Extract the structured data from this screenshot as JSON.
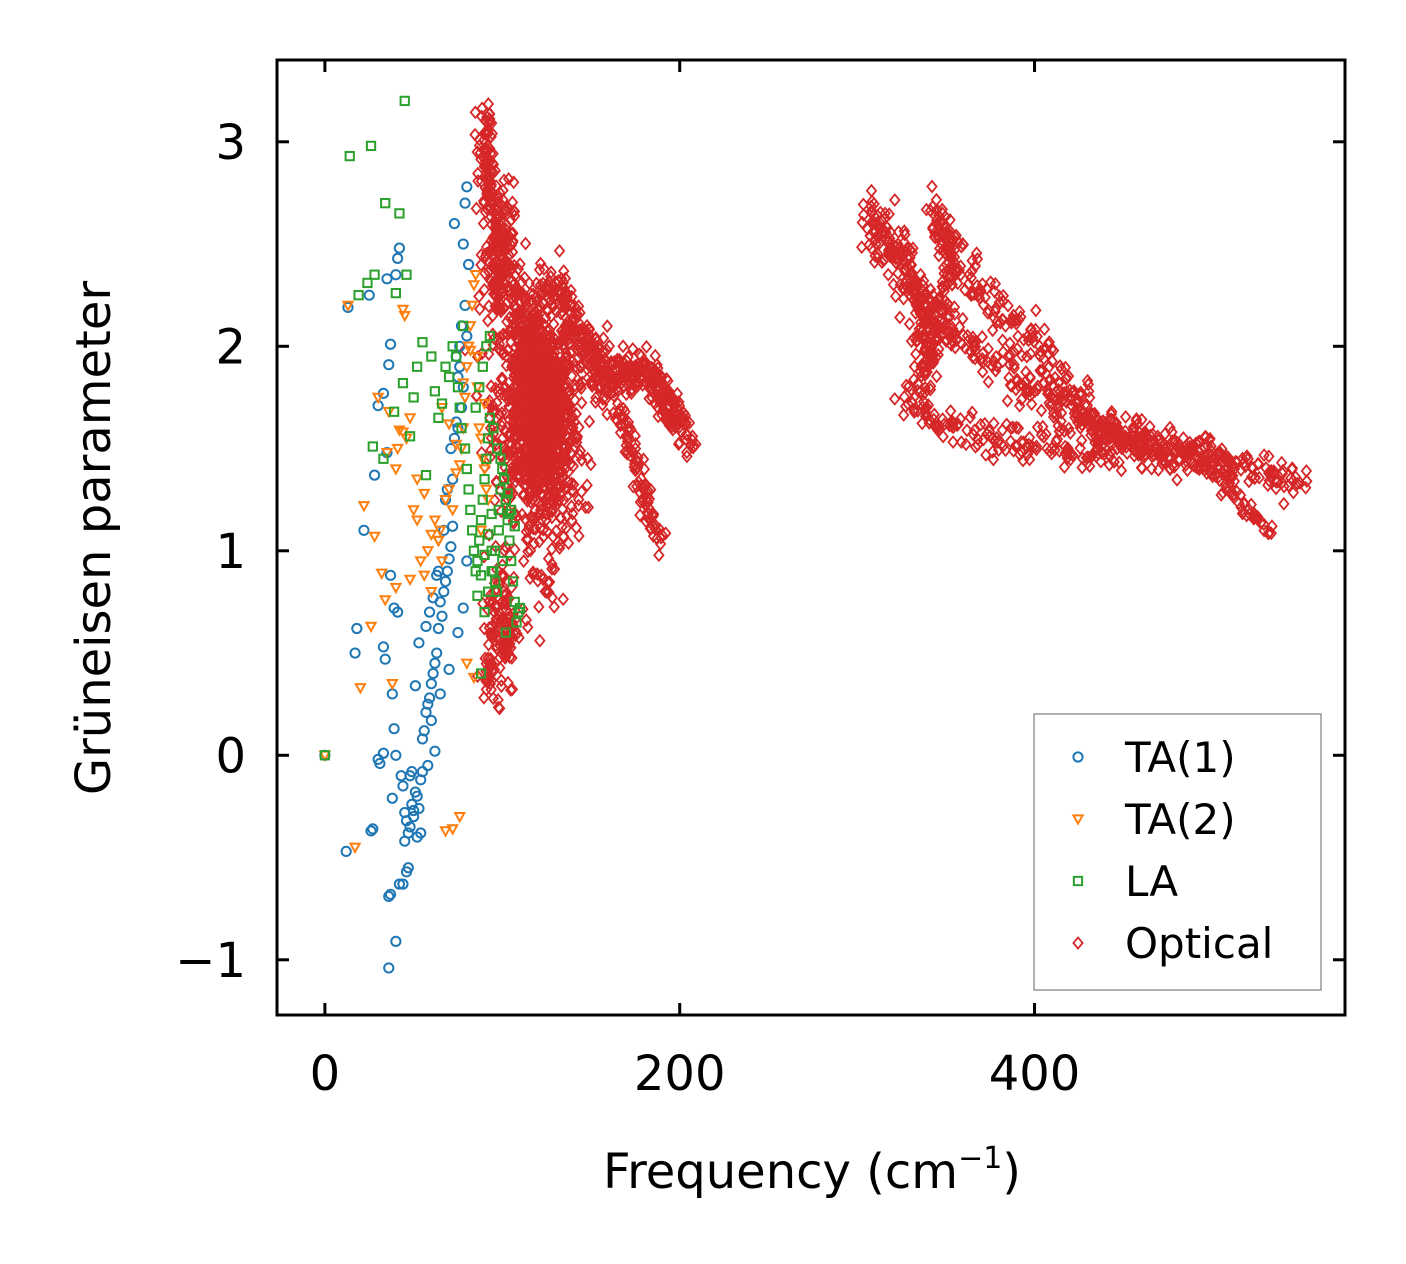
{
  "chart_data": {
    "type": "scatter",
    "xlabel": "Frequency (cm",
    "xlabel_sup": "−1",
    "xlabel_suffix": ")",
    "ylabel": "Grüneisen parameter",
    "xlim": [
      -27,
      575
    ],
    "ylim": [
      -1.27,
      3.4
    ],
    "xticks": [
      0,
      200,
      400
    ],
    "xtick_labels": [
      "0",
      "200",
      "400"
    ],
    "yticks": [
      -1,
      0,
      1,
      2,
      3
    ],
    "ytick_labels": [
      "−1",
      "0",
      "1",
      "2",
      "3"
    ],
    "legend_position": "bottom-right",
    "series": [
      {
        "name": "TA(1)",
        "label": "TA(1)",
        "marker": "circle",
        "color": "#1f77b4",
        "x": [
          0,
          12,
          13,
          17,
          18,
          22,
          25,
          26,
          27,
          28,
          30,
          30,
          31,
          33,
          33,
          34,
          35,
          36,
          36,
          37,
          37,
          38,
          38,
          39,
          40,
          40,
          41,
          42,
          42,
          44,
          45,
          46,
          47,
          48,
          49,
          50,
          51,
          52,
          53,
          54,
          55,
          56,
          57,
          58,
          59,
          60,
          61,
          62,
          63,
          64,
          65,
          66,
          67,
          68,
          69,
          70,
          71,
          72,
          73,
          74,
          75,
          76,
          77,
          78,
          79,
          80,
          44,
          48,
          52,
          46,
          50,
          54,
          58,
          62,
          40,
          36,
          55,
          60,
          65,
          70,
          75,
          78,
          80,
          72,
          68,
          64,
          75,
          77,
          79,
          76,
          74,
          78,
          80,
          81,
          73,
          71,
          69,
          67,
          63,
          61,
          59,
          57,
          53,
          51,
          49,
          47,
          45,
          43,
          41,
          39,
          37,
          35,
          33
        ],
        "y": [
          0,
          -0.47,
          2.19,
          0.5,
          0.62,
          1.1,
          2.25,
          -0.37,
          -0.36,
          1.37,
          1.71,
          -0.02,
          -0.04,
          0.01,
          0.53,
          0.47,
          2.33,
          -0.69,
          1.91,
          2.01,
          -0.68,
          -0.21,
          0.3,
          0.13,
          -0.91,
          2.35,
          2.43,
          2.48,
          -0.63,
          -0.63,
          -0.28,
          -0.57,
          -0.55,
          -0.35,
          -0.24,
          -0.3,
          -0.18,
          -0.4,
          -0.26,
          -0.38,
          -0.08,
          0.12,
          0.21,
          0.25,
          0.28,
          0.35,
          0.4,
          0.45,
          0.5,
          0.62,
          0.75,
          0.68,
          0.8,
          0.85,
          0.9,
          0.96,
          1.02,
          1.35,
          1.55,
          1.63,
          1.85,
          1.9,
          2.1,
          2.5,
          2.7,
          2.78,
          -0.15,
          -0.1,
          -0.2,
          -0.32,
          -0.27,
          -0.12,
          -0.05,
          0.02,
          0.0,
          -1.04,
          0.08,
          0.17,
          0.3,
          0.42,
          0.6,
          0.72,
          0.95,
          1.12,
          1.25,
          0.9,
          1.6,
          1.7,
          2.2,
          2.0,
          1.95,
          1.8,
          2.05,
          2.4,
          2.6,
          1.5,
          1.3,
          1.1,
          0.88,
          0.77,
          0.7,
          0.63,
          0.55,
          0.34,
          -0.08,
          -0.38,
          -0.42,
          -0.1,
          0.7,
          0.72,
          0.88,
          1.48,
          1.77
        ]
      },
      {
        "name": "TA(2)",
        "label": "TA(2)",
        "marker": "triangle-down",
        "color": "#ff7f0e",
        "x": [
          0,
          13,
          17,
          20,
          22,
          26,
          28,
          30,
          32,
          34,
          35,
          36,
          38,
          40,
          41,
          42,
          44,
          45,
          46,
          48,
          50,
          52,
          54,
          56,
          58,
          60,
          62,
          64,
          65,
          66,
          68,
          70,
          72,
          74,
          76,
          77,
          78,
          79,
          80,
          81,
          82,
          83,
          84,
          85,
          86,
          87,
          88,
          89,
          90,
          91,
          92,
          48,
          52,
          56,
          60,
          64,
          68,
          72,
          76,
          80,
          84,
          88,
          66,
          70,
          74,
          78,
          82,
          86,
          90,
          44,
          40
        ],
        "y": [
          0,
          2.2,
          -0.45,
          0.33,
          1.22,
          0.63,
          1.07,
          1.75,
          0.89,
          0.76,
          1.48,
          1.68,
          0.35,
          1.4,
          1.5,
          1.59,
          2.18,
          2.15,
          1.55,
          0.86,
          1.2,
          1.35,
          0.95,
          1.28,
          1.0,
          1.08,
          1.15,
          1.05,
          1.1,
          0.95,
          1.25,
          1.3,
          1.2,
          1.38,
          1.42,
          1.5,
          1.6,
          1.75,
          1.9,
          2.0,
          2.1,
          2.2,
          2.3,
          2.35,
          1.8,
          1.6,
          1.55,
          1.45,
          1.4,
          1.3,
          1.25,
          1.65,
          1.15,
          0.88,
          0.8,
          1.05,
          -0.37,
          -0.36,
          -0.3,
          0.45,
          0.38,
          1.1,
          1.7,
          1.62,
          1.52,
          1.82,
          1.98,
          1.95,
          1.72,
          1.58,
          0.82
        ]
      },
      {
        "name": "LA",
        "label": "LA",
        "marker": "square",
        "color": "#2ca02c",
        "x": [
          0,
          14,
          19,
          24,
          26,
          27,
          28,
          33,
          34,
          39,
          40,
          42,
          44,
          45,
          46,
          48,
          50,
          52,
          55,
          57,
          60,
          62,
          64,
          66,
          68,
          70,
          72,
          74,
          75,
          76,
          77,
          78,
          79,
          80,
          81,
          82,
          83,
          84,
          85,
          86,
          87,
          88,
          89,
          90,
          91,
          92,
          93,
          94,
          95,
          96,
          97,
          98,
          99,
          100,
          101,
          102,
          103,
          104,
          105,
          106,
          107,
          108,
          109,
          110,
          88,
          90,
          92,
          94,
          96,
          98,
          100,
          102,
          104,
          85,
          87,
          89,
          91,
          93,
          95,
          97,
          99,
          101,
          103,
          105,
          107,
          86,
          88,
          90,
          92,
          94
        ],
        "y": [
          0,
          2.93,
          2.25,
          2.31,
          2.98,
          1.51,
          2.35,
          1.45,
          2.7,
          1.68,
          2.26,
          2.65,
          1.82,
          3.2,
          2.35,
          1.56,
          1.75,
          1.9,
          2.02,
          1.37,
          1.95,
          1.78,
          1.65,
          1.72,
          1.9,
          1.85,
          2.0,
          1.95,
          1.8,
          1.7,
          1.6,
          2.1,
          1.5,
          1.4,
          1.3,
          1.2,
          1.1,
          1.0,
          0.9,
          0.95,
          1.05,
          1.15,
          1.25,
          1.35,
          1.45,
          1.55,
          1.65,
          1.0,
          0.9,
          0.85,
          0.8,
          1.2,
          1.3,
          1.4,
          1.35,
          1.25,
          1.15,
          1.05,
          0.95,
          0.85,
          0.75,
          0.65,
          0.7,
          0.72,
          0.4,
          0.7,
          0.8,
          0.9,
          1.0,
          1.1,
          0.95,
          0.6,
          1.18,
          1.7,
          1.8,
          1.9,
          2.0,
          2.05,
          1.6,
          1.5,
          1.45,
          1.35,
          1.28,
          1.2,
          1.12,
          0.78,
          0.88,
          0.98,
          1.08,
          1.18
        ]
      },
      {
        "name": "Optical",
        "label": "Optical",
        "marker": "diamond",
        "color": "#d62728",
        "note_clusters": "dense optical branches",
        "clusters": [
          {
            "cx": 118,
            "cy": 1.7,
            "sx": 16,
            "sy": 0.35,
            "n": 900
          },
          {
            "cx": 125,
            "cy": 1.55,
            "sx": 12,
            "sy": 0.45,
            "n": 500
          },
          {
            "cx": 98,
            "cy": 2.45,
            "sx": 6,
            "sy": 0.25,
            "n": 160
          },
          {
            "cx": 92,
            "cy": 2.9,
            "sx": 2,
            "sy": 0.2,
            "n": 40
          },
          {
            "cx": 100,
            "cy": 0.65,
            "sx": 6,
            "sy": 0.25,
            "n": 120
          },
          {
            "cx": 92,
            "cy": 0.4,
            "sx": 3,
            "sy": 0.1,
            "n": 20
          }
        ],
        "paths": [
          {
            "pts": [
              [
                90,
                3.12
              ],
              [
                92,
                2.8
              ],
              [
                96,
                2.6
              ],
              [
                102,
                2.4
              ],
              [
                110,
                2.1
              ],
              [
                120,
                1.9
              ],
              [
                130,
                1.8
              ]
            ],
            "n": 120,
            "jx": 3,
            "jy": 0.04
          },
          {
            "pts": [
              [
                110,
                2.05
              ],
              [
                125,
                2.25
              ],
              [
                132,
                2.3
              ],
              [
                140,
                2.1
              ],
              [
                150,
                1.95
              ],
              [
                160,
                1.85
              ],
              [
                172,
                1.9
              ],
              [
                185,
                1.85
              ],
              [
                195,
                1.7
              ],
              [
                205,
                1.52
              ]
            ],
            "n": 260,
            "jx": 3,
            "jy": 0.05
          },
          {
            "pts": [
              [
                150,
                1.85
              ],
              [
                160,
                1.75
              ],
              [
                170,
                1.6
              ],
              [
                175,
                1.4
              ],
              [
                180,
                1.25
              ],
              [
                186,
                1.1
              ],
              [
                190,
                1.06
              ]
            ],
            "n": 120,
            "jx": 2,
            "jy": 0.04
          },
          {
            "pts": [
              [
                140,
                2.05
              ],
              [
                155,
                1.95
              ],
              [
                170,
                1.8
              ],
              [
                182,
                1.9
              ],
              [
                190,
                1.75
              ],
              [
                198,
                1.6
              ]
            ],
            "n": 160,
            "jx": 3,
            "jy": 0.05
          },
          {
            "pts": [
              [
                306,
                2.68
              ],
              [
                315,
                2.55
              ],
              [
                325,
                2.4
              ],
              [
                335,
                2.25
              ],
              [
                345,
                2.15
              ],
              [
                355,
                2.05
              ],
              [
                368,
                1.98
              ],
              [
                380,
                1.9
              ],
              [
                395,
                1.82
              ],
              [
                410,
                1.72
              ],
              [
                430,
                1.62
              ],
              [
                455,
                1.55
              ],
              [
                480,
                1.5
              ],
              [
                505,
                1.43
              ],
              [
                530,
                1.38
              ],
              [
                552,
                1.33
              ]
            ],
            "n": 380,
            "jx": 3,
            "jy": 0.05
          },
          {
            "pts": [
              [
                308,
                2.65
              ],
              [
                320,
                2.5
              ],
              [
                330,
                2.35
              ],
              [
                338,
                2.2
              ],
              [
                345,
                2.1
              ]
            ],
            "n": 80,
            "jx": 4,
            "jy": 0.07
          },
          {
            "pts": [
              [
                342,
                2.68
              ],
              [
                348,
                2.55
              ],
              [
                352,
                2.4
              ],
              [
                350,
                2.25
              ],
              [
                346,
                2.1
              ],
              [
                340,
                1.95
              ],
              [
                335,
                1.8
              ],
              [
                328,
                1.75
              ],
              [
                336,
                1.7
              ],
              [
                345,
                1.65
              ],
              [
                358,
                1.6
              ],
              [
                375,
                1.55
              ],
              [
                395,
                1.52
              ],
              [
                415,
                1.5
              ],
              [
                430,
                1.46
              ],
              [
                445,
                1.48
              ],
              [
                460,
                1.5
              ],
              [
                475,
                1.47
              ]
            ],
            "n": 300,
            "jx": 3,
            "jy": 0.04
          },
          {
            "pts": [
              [
                344,
                2.6
              ],
              [
                355,
                2.45
              ],
              [
                365,
                2.3
              ],
              [
                375,
                2.2
              ],
              [
                390,
                2.1
              ],
              [
                405,
                1.95
              ],
              [
                420,
                1.8
              ],
              [
                432,
                1.65
              ],
              [
                440,
                1.6
              ]
            ],
            "n": 180,
            "jx": 4,
            "jy": 0.06
          },
          {
            "pts": [
              [
                330,
                2.3
              ],
              [
                338,
                2.0
              ],
              [
                342,
                1.85
              ],
              [
                336,
                2.15
              ]
            ],
            "n": 60,
            "jx": 3,
            "jy": 0.06
          },
          {
            "pts": [
              [
                480,
                1.5
              ],
              [
                495,
                1.42
              ],
              [
                510,
                1.3
              ],
              [
                520,
                1.2
              ],
              [
                532,
                1.09
              ]
            ],
            "n": 70,
            "jx": 2,
            "jy": 0.03
          },
          {
            "pts": [
              [
                430,
                1.6
              ],
              [
                450,
                1.58
              ],
              [
                470,
                1.5
              ],
              [
                490,
                1.48
              ],
              [
                510,
                1.42
              ]
            ],
            "n": 90,
            "jx": 3,
            "jy": 0.04
          }
        ]
      }
    ]
  }
}
